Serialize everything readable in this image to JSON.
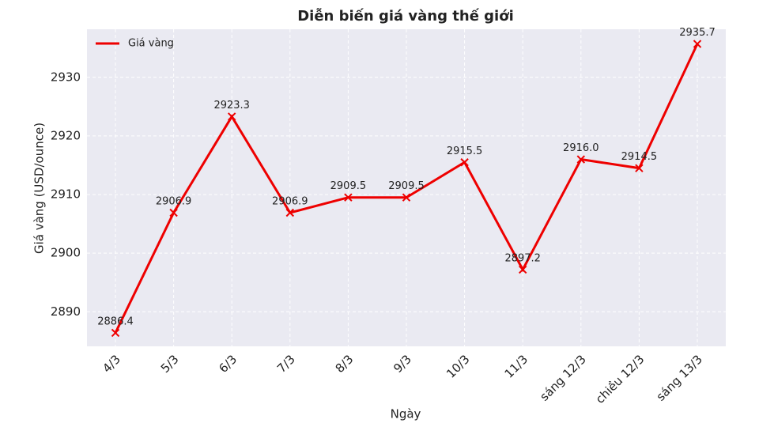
{
  "chart_data": {
    "type": "line",
    "title": "Diễn biến giá vàng thế giới",
    "x_label": "Ngày",
    "y_label": "Giá vàng (USD/ounce)",
    "categories": [
      "4/3",
      "5/3",
      "6/3",
      "7/3",
      "8/3",
      "9/3",
      "10/3",
      "11/3",
      "sáng 12/3",
      "chiều 12/3",
      "sáng 13/3"
    ],
    "series": [
      {
        "name": "Giá vàng",
        "color": "#ee0000",
        "values": [
          2886.4,
          2906.9,
          2923.3,
          2906.9,
          2909.5,
          2909.5,
          2915.5,
          2897.2,
          2916.0,
          2914.5,
          2935.7
        ],
        "value_labels": [
          "2886.4",
          "2906.9",
          "2923.3",
          "2906.9",
          "2909.5",
          "2909.5",
          "2915.5",
          "2897.2",
          "2916.0",
          "2914.5",
          "2935.7"
        ]
      }
    ],
    "ylim": [
      2884.1,
      2938.2
    ],
    "yticks": [
      2890,
      2900,
      2910,
      2920,
      2930
    ],
    "grid": true,
    "legend": "upper left"
  }
}
